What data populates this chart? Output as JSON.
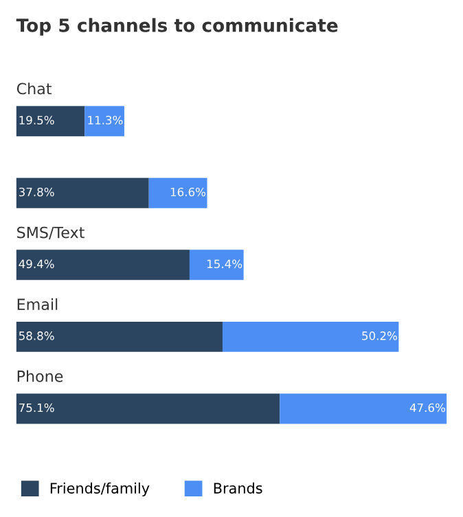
{
  "chart_data": {
    "type": "bar",
    "orientation": "horizontal",
    "stacked": true,
    "title": "Top 5 channels to communicate",
    "categories": [
      "Chat",
      null,
      "SMS/Text",
      "Email",
      "Phone"
    ],
    "series": [
      {
        "name": "Friends/family",
        "color": "#2b4460",
        "values": [
          19.5,
          37.8,
          49.4,
          58.8,
          75.1
        ],
        "value_labels": [
          "19.5%",
          "37.8%",
          "49.4%",
          "58.8%",
          "75.1%"
        ]
      },
      {
        "name": "Brands",
        "color": "#4d8ef5",
        "values": [
          11.3,
          16.6,
          15.4,
          50.2,
          47.6
        ],
        "value_labels": [
          "11.3%",
          "16.6%",
          "15.4%",
          "50.2%",
          "47.6%"
        ]
      }
    ],
    "legend": "bottom left"
  }
}
